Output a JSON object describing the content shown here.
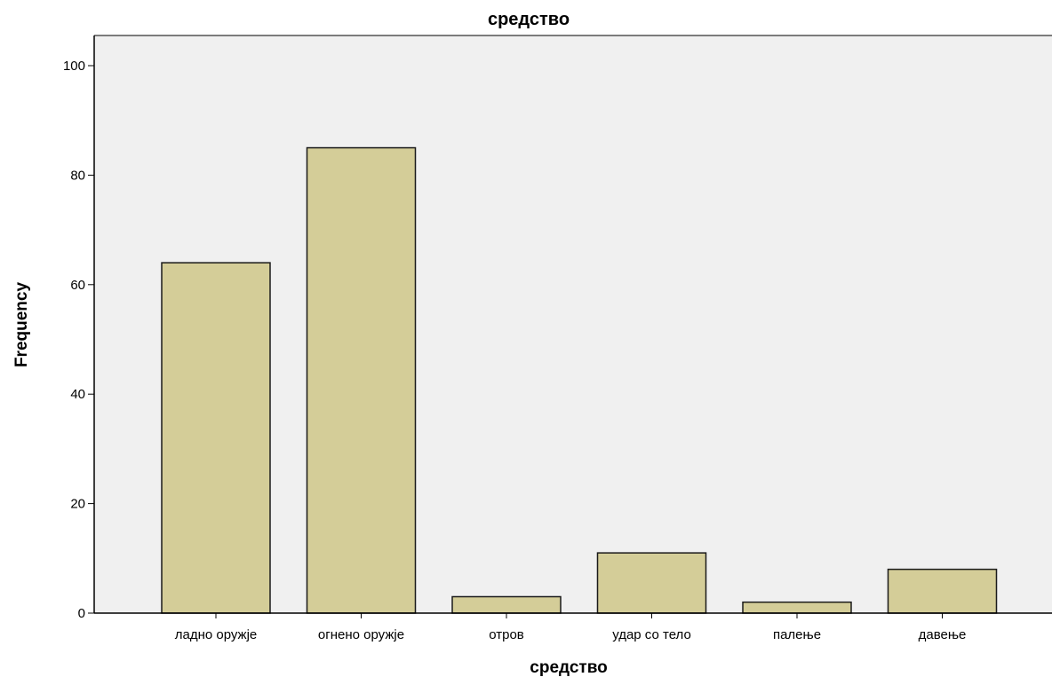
{
  "chart_data": {
    "type": "bar",
    "title": "средство",
    "xlabel": "средство",
    "ylabel": "Frequency",
    "categories": [
      "ладно оружје",
      "огнено оружје",
      "отров",
      "удар со тело",
      "палење",
      "давење"
    ],
    "values": [
      64,
      85,
      3,
      11,
      2,
      8
    ],
    "ylim": [
      0,
      105
    ],
    "yticks": [
      0,
      20,
      40,
      60,
      80,
      100
    ],
    "grid": false,
    "legend": "none",
    "colors": {
      "bar_fill": "#d4cd98",
      "bar_stroke": "#1a1a1a",
      "plot_background": "#f0f0f0",
      "axis": "#000000"
    }
  }
}
